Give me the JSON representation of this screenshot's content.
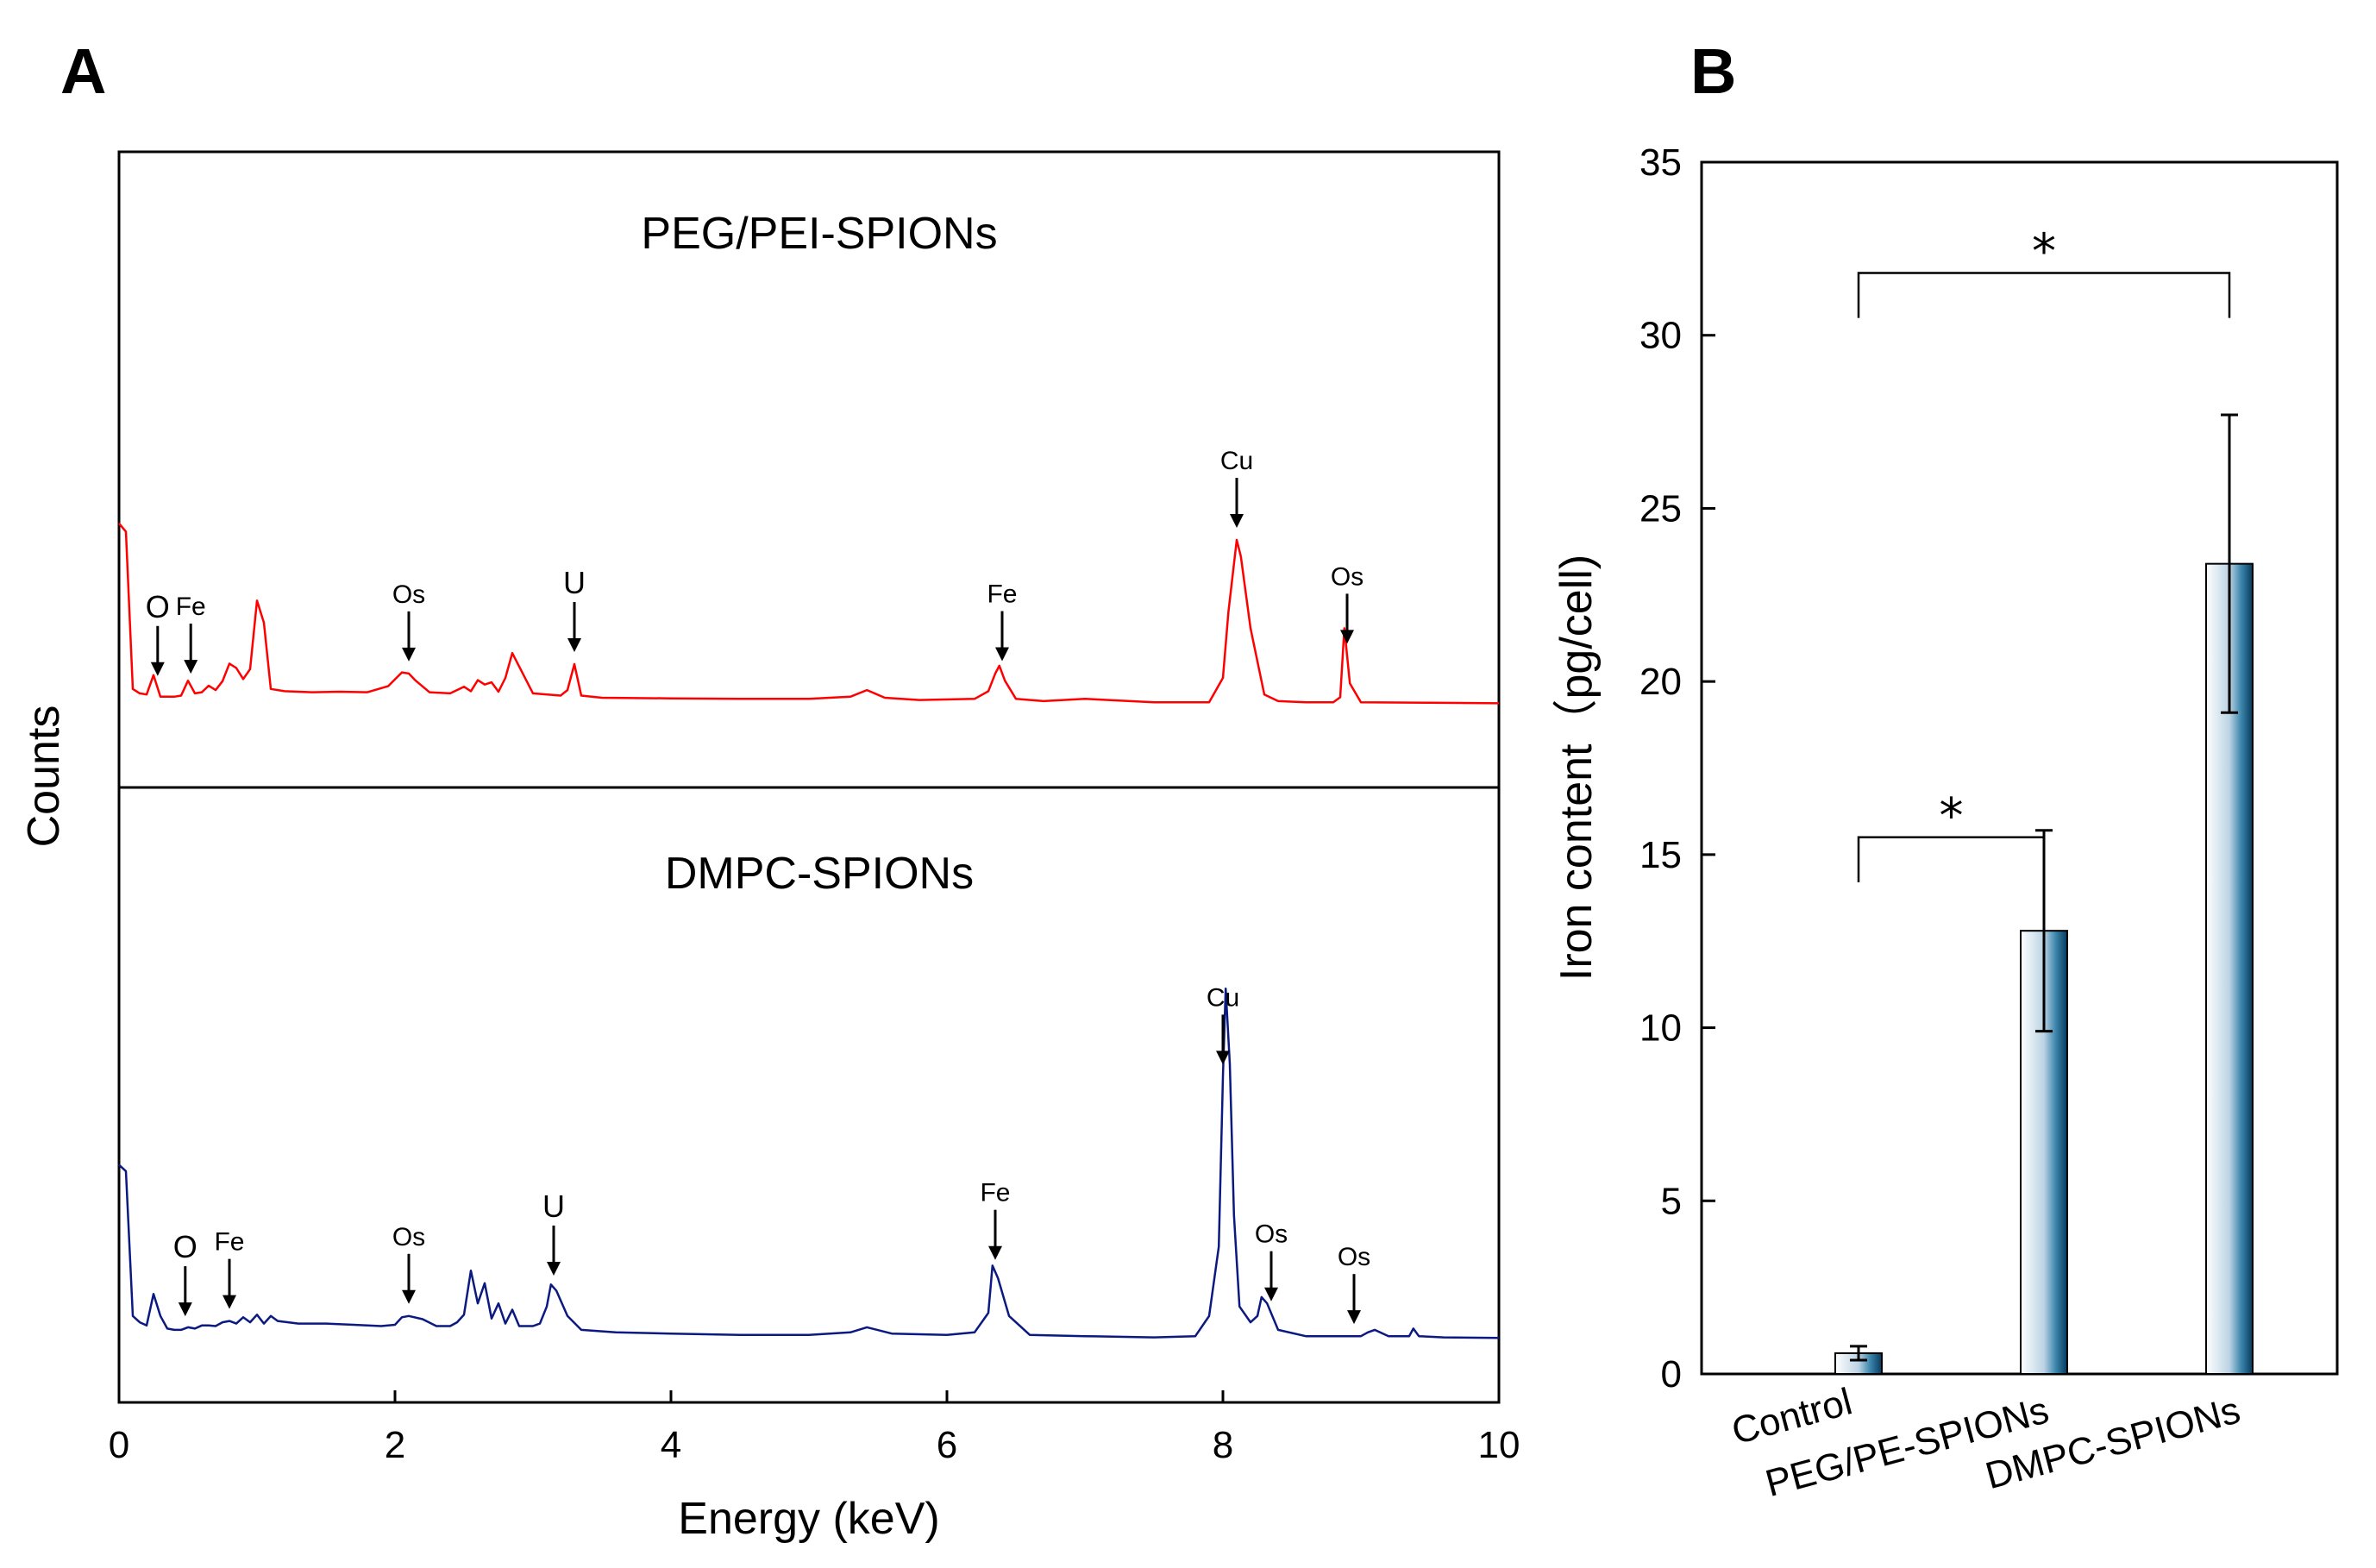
{
  "panel_labels": {
    "a": "A",
    "b": "B"
  },
  "chart_data": [
    {
      "type": "line",
      "panel": "A",
      "title": "",
      "xlabel": "Energy (keV)",
      "ylabel": "Counts",
      "xlim": [
        0,
        10
      ],
      "x_ticks": [
        "0",
        "2",
        "4",
        "6",
        "8",
        "10"
      ],
      "series": [
        {
          "name": "PEG/PEI-SPIONs",
          "color": "#ff0000",
          "x": [
            0.0,
            0.05,
            0.1,
            0.15,
            0.2,
            0.25,
            0.3,
            0.35,
            0.4,
            0.45,
            0.5,
            0.55,
            0.6,
            0.65,
            0.7,
            0.75,
            0.8,
            0.85,
            0.9,
            0.95,
            1.0,
            1.05,
            1.1,
            1.2,
            1.4,
            1.6,
            1.8,
            1.95,
            2.05,
            2.1,
            2.15,
            2.25,
            2.4,
            2.5,
            2.55,
            2.6,
            2.65,
            2.7,
            2.75,
            2.8,
            2.85,
            3.0,
            3.2,
            3.25,
            3.3,
            3.35,
            3.5,
            4.0,
            4.5,
            5.0,
            5.3,
            5.42,
            5.55,
            5.8,
            6.2,
            6.3,
            6.35,
            6.38,
            6.42,
            6.5,
            6.7,
            7.0,
            7.5,
            7.9,
            8.0,
            8.04,
            8.1,
            8.13,
            8.2,
            8.3,
            8.4,
            8.6,
            8.8,
            8.85,
            8.88,
            8.92,
            9.0,
            9.5,
            10.0
          ],
          "y": [
            330,
            315,
            30,
            22,
            20,
            55,
            16,
            16,
            16,
            18,
            45,
            22,
            24,
            36,
            28,
            44,
            76,
            68,
            48,
            66,
            190,
            150,
            30,
            26,
            24,
            25,
            24,
            35,
            60,
            58,
            45,
            24,
            22,
            34,
            26,
            46,
            38,
            42,
            25,
            50,
            95,
            22,
            18,
            28,
            75,
            18,
            14,
            13,
            12,
            12,
            16,
            28,
            14,
            10,
            12,
            26,
            58,
            72,
            45,
            12,
            8,
            12,
            6,
            6,
            50,
            170,
            300,
            270,
            140,
            20,
            8,
            6,
            6,
            15,
            140,
            40,
            6,
            5,
            4
          ]
        },
        {
          "name": "DMPC-SPIONs",
          "color": "#0a1a80",
          "x": [
            0.0,
            0.05,
            0.1,
            0.15,
            0.2,
            0.25,
            0.3,
            0.35,
            0.4,
            0.45,
            0.5,
            0.55,
            0.6,
            0.65,
            0.7,
            0.75,
            0.8,
            0.85,
            0.9,
            0.95,
            1.0,
            1.05,
            1.1,
            1.15,
            1.3,
            1.5,
            1.7,
            1.9,
            2.0,
            2.05,
            2.1,
            2.2,
            2.3,
            2.4,
            2.45,
            2.5,
            2.55,
            2.6,
            2.65,
            2.7,
            2.75,
            2.8,
            2.85,
            2.9,
            3.0,
            3.05,
            3.1,
            3.13,
            3.17,
            3.25,
            3.35,
            3.6,
            4.0,
            4.5,
            5.0,
            5.3,
            5.42,
            5.6,
            6.0,
            6.2,
            6.3,
            6.33,
            6.37,
            6.45,
            6.6,
            7.0,
            7.5,
            7.8,
            7.9,
            7.97,
            8.0,
            8.02,
            8.05,
            8.08,
            8.12,
            8.2,
            8.25,
            8.28,
            8.32,
            8.4,
            8.6,
            8.8,
            9.0,
            9.05,
            9.1,
            9.2,
            9.35,
            9.38,
            9.42,
            9.6,
            10.0
          ],
          "y": [
            280,
            270,
            40,
            30,
            25,
            75,
            40,
            20,
            18,
            18,
            22,
            20,
            25,
            25,
            24,
            30,
            32,
            28,
            38,
            30,
            42,
            28,
            40,
            32,
            28,
            28,
            26,
            24,
            26,
            38,
            40,
            35,
            24,
            24,
            30,
            42,
            112,
            60,
            92,
            36,
            60,
            28,
            50,
            24,
            24,
            28,
            55,
            90,
            80,
            40,
            18,
            14,
            12,
            10,
            10,
            14,
            22,
            12,
            10,
            14,
            45,
            120,
            100,
            40,
            10,
            8,
            6,
            8,
            40,
            150,
            420,
            560,
            440,
            200,
            55,
            30,
            40,
            70,
            60,
            18,
            8,
            8,
            8,
            14,
            18,
            8,
            8,
            20,
            8,
            6,
            5
          ]
        }
      ],
      "annotations": [
        {
          "series": "PEG/PEI-SPIONs",
          "label": "O",
          "x": 0.28
        },
        {
          "series": "PEG/PEI-SPIONs",
          "label": "Fe",
          "x": 0.52
        },
        {
          "series": "PEG/PEI-SPIONs",
          "label": "Os",
          "x": 2.1
        },
        {
          "series": "PEG/PEI-SPIONs",
          "label": "U",
          "x": 3.3
        },
        {
          "series": "PEG/PEI-SPIONs",
          "label": "Fe",
          "x": 6.4
        },
        {
          "series": "PEG/PEI-SPIONs",
          "label": "Cu",
          "x": 8.1
        },
        {
          "series": "PEG/PEI-SPIONs",
          "label": "Os",
          "x": 8.9
        },
        {
          "series": "DMPC-SPIONs",
          "label": "O",
          "x": 0.48
        },
        {
          "series": "DMPC-SPIONs",
          "label": "Fe",
          "x": 0.8
        },
        {
          "series": "DMPC-SPIONs",
          "label": "Os",
          "x": 2.1
        },
        {
          "series": "DMPC-SPIONs",
          "label": "U",
          "x": 3.15
        },
        {
          "series": "DMPC-SPIONs",
          "label": "Fe",
          "x": 6.35
        },
        {
          "series": "DMPC-SPIONs",
          "label": "Cu",
          "x": 8.0
        },
        {
          "series": "DMPC-SPIONs",
          "label": "Os",
          "x": 8.35
        },
        {
          "series": "DMPC-SPIONs",
          "label": "Os",
          "x": 8.95
        }
      ]
    },
    {
      "type": "bar",
      "panel": "B",
      "title": "",
      "xlabel": "",
      "ylabel": "Iron content（pg/cell)",
      "ylim": [
        0,
        35
      ],
      "y_ticks": [
        "0",
        "5",
        "10",
        "15",
        "20",
        "25",
        "30",
        "35"
      ],
      "categories": [
        "Control",
        "PEG/PE-SPIONs",
        "DMPC-SPIONs"
      ],
      "values": [
        0.6,
        12.8,
        23.4
      ],
      "errors": [
        0.2,
        2.9,
        4.3
      ],
      "significance": [
        {
          "from": "Control",
          "to": "PEG/PE-SPIONs",
          "label": "*"
        },
        {
          "from": "Control",
          "to": "DMPC-SPIONs",
          "label": "*"
        }
      ]
    }
  ]
}
